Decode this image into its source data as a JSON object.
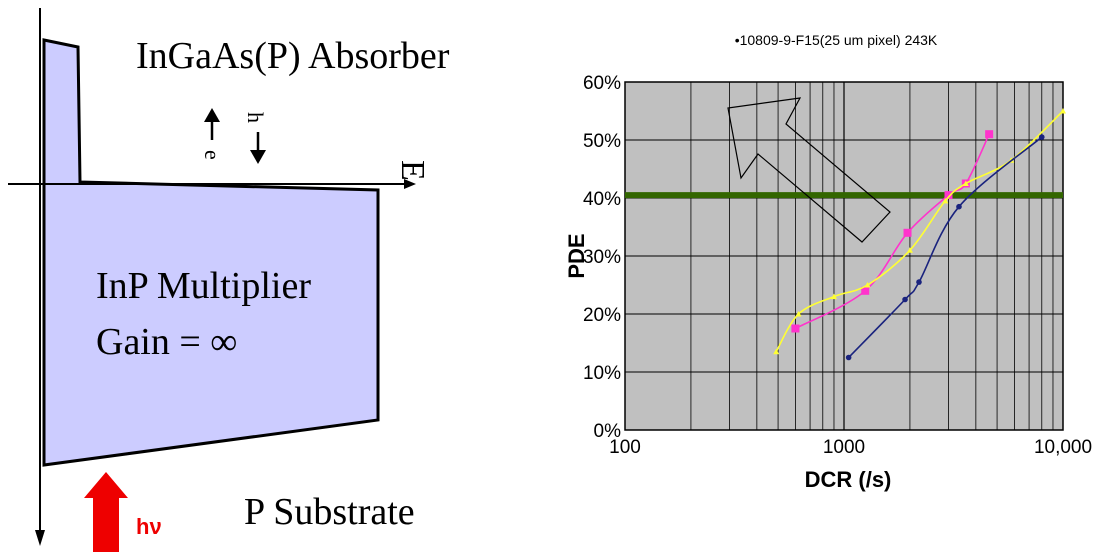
{
  "diagram": {
    "absorber_label": "InGaAs(P) Absorber",
    "multiplier_label_line1": "InP Multiplier",
    "multiplier_label_line2": "Gain = ∞",
    "substrate_label": "P Substrate",
    "field_label": "E",
    "electron_label": "e",
    "hole_label": "h",
    "photon_label": "hν",
    "colors": {
      "fill": "#ccccff",
      "photon_arrow": "#ee0000"
    }
  },
  "chart_data": {
    "type": "line",
    "title": "•10809-9-F15(25 um pixel) 243K",
    "xlabel": "DCR (/s)",
    "ylabel": "PDE",
    "x_scale": "log",
    "xlim": [
      100,
      10000
    ],
    "ylim": [
      0,
      60
    ],
    "x_tick_labels": [
      "100",
      "1000",
      "10,000"
    ],
    "y_tick_labels": [
      "0%",
      "10%",
      "20%",
      "30%",
      "40%",
      "50%",
      "60%"
    ],
    "grid": true,
    "plot_background": "#c0c0c0",
    "threshold_line": {
      "y": 40.5,
      "color": "#336600"
    },
    "series": [
      {
        "color": "#ff33cc",
        "x": [
          600,
          1250,
          1950,
          3000,
          3600,
          4600
        ],
        "y": [
          17.5,
          24,
          34,
          40.5,
          42.5,
          51
        ]
      },
      {
        "color": "#ffff33",
        "x": [
          490,
          620,
          900,
          1280,
          2000,
          2900,
          3600,
          5800,
          10000
        ],
        "y": [
          13.5,
          20,
          23,
          25,
          31,
          39.5,
          42.5,
          46.5,
          55
        ]
      },
      {
        "color": "#1a237e",
        "x": [
          1050,
          1900,
          2200,
          3350,
          8000
        ],
        "y": [
          12.5,
          22.5,
          25.5,
          38.5,
          50.5
        ]
      }
    ]
  }
}
